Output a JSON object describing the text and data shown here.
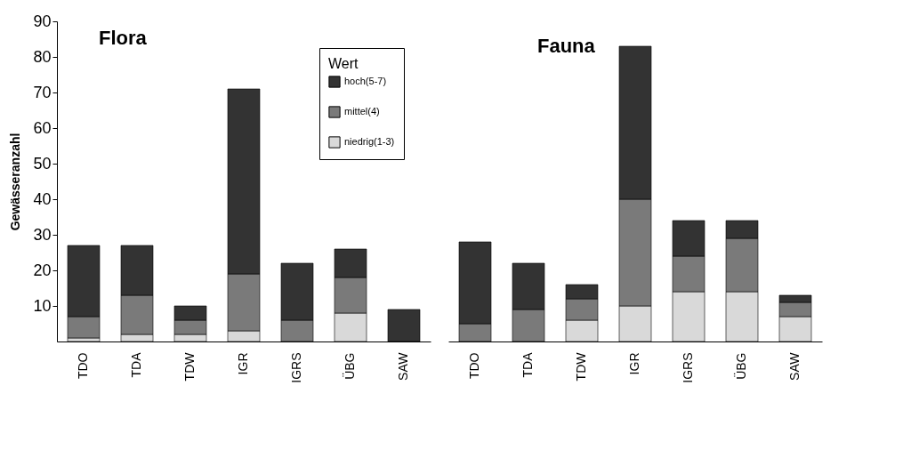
{
  "chart_data": [
    {
      "type": "bar",
      "title": "Flora",
      "ylabel": "Gewässeranzahl",
      "legend_title": "Wert",
      "legend": "top right",
      "stacked": true,
      "categories": [
        "TDO",
        "TDA",
        "TDW",
        "IGR",
        "IGRS",
        "ÜBG",
        "SAW"
      ],
      "ylim": [
        0,
        90
      ],
      "yticks": [
        10,
        20,
        30,
        40,
        50,
        60,
        70,
        80,
        90
      ],
      "grid": false,
      "series": [
        {
          "name": "niedrig(1-3)",
          "color": "#d9d9d9",
          "values": [
            1,
            2,
            2,
            3,
            0,
            8,
            0
          ]
        },
        {
          "name": "mittel(4)",
          "color": "#7a7a7a",
          "values": [
            6,
            11,
            4,
            16,
            6,
            10,
            0
          ]
        },
        {
          "name": "hoch(5-7)",
          "color": "#333333",
          "values": [
            20,
            14,
            4,
            52,
            16,
            8,
            9
          ]
        }
      ]
    },
    {
      "type": "bar",
      "title": "Fauna",
      "stacked": true,
      "tick_labels": "x",
      "categories": [
        "TDO",
        "TDA",
        "TDW",
        "IGR",
        "IGRS",
        "ÜBG",
        "SAW"
      ],
      "ylim": [
        0,
        90
      ],
      "yticks": [
        10,
        20,
        30,
        40,
        50,
        60,
        70,
        80,
        90
      ],
      "grid": false,
      "series": [
        {
          "color": "#d9d9d9",
          "values": [
            0,
            0,
            6,
            10,
            14,
            14,
            7
          ]
        },
        {
          "color": "#7a7a7a",
          "values": [
            5,
            9,
            6,
            30,
            10,
            15,
            4
          ]
        },
        {
          "color": "#333333",
          "values": [
            23,
            13,
            4,
            43,
            10,
            5,
            2
          ]
        }
      ]
    }
  ]
}
